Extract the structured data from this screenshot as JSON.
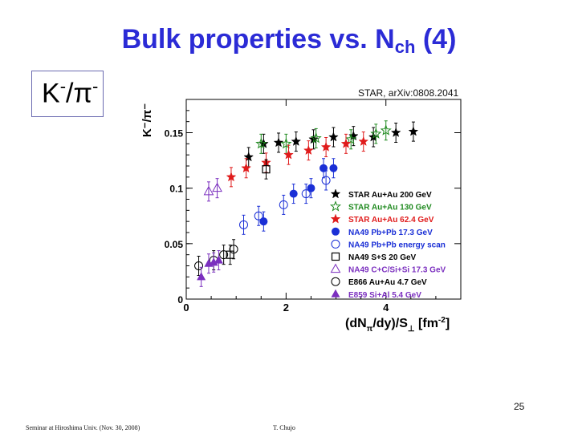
{
  "slide": {
    "title_main": "Bulk properties vs. N",
    "title_sub": "ch",
    "title_suffix": " (4)",
    "ratio_label_k": "K",
    "ratio_label_sup1": "-",
    "ratio_label_slash": "/",
    "ratio_label_pi": "π",
    "ratio_label_sup2": "-",
    "reference": "STAR, arXiv:0808.2041",
    "page_number": "25",
    "footer_left": "Seminar at Hiroshima Univ. (Nov. 30, 2008)",
    "footer_right": "T. Chujo"
  },
  "chart_data": {
    "type": "scatter",
    "ylabel": "K⁻/π⁻",
    "xlabel": "(dN",
    "xlabel_sub": "π",
    "xlabel_mid": "/dy)/S",
    "xlabel_sub2": "⊥",
    "xlabel_unit": "[fm",
    "xlabel_unit_sup": "-2",
    "xlabel_unit_end": "]",
    "xlim": [
      0,
      5.5
    ],
    "ylim": [
      0,
      0.18
    ],
    "x_ticks": [
      0,
      2,
      4
    ],
    "x_tick_labels": [
      "0",
      "2",
      "4"
    ],
    "y_ticks": [
      0,
      0.05,
      0.1,
      0.15
    ],
    "y_tick_labels": [
      "0",
      "0.05",
      "0.1",
      "0.15"
    ],
    "grid": false,
    "legend_position": "bottom-right",
    "series": [
      {
        "name": "STAR Au+Au 200 GeV",
        "marker": "star-filled",
        "color": "#000000",
        "x": [
          1.25,
          1.55,
          1.85,
          2.2,
          2.55,
          2.95,
          3.35,
          3.75,
          4.2,
          4.55
        ],
        "y": [
          0.128,
          0.14,
          0.141,
          0.142,
          0.144,
          0.146,
          0.147,
          0.146,
          0.15,
          0.151
        ]
      },
      {
        "name": "STAR Au+Au 130 GeV",
        "marker": "star-open",
        "color": "#1f8a1f",
        "x": [
          1.5,
          2.0,
          2.6,
          3.3,
          3.8,
          4.0
        ],
        "y": [
          0.14,
          0.14,
          0.145,
          0.144,
          0.149,
          0.152
        ]
      },
      {
        "name": "STAR Au+Au 62.4 GeV",
        "marker": "star-filled",
        "color": "#e01b1b",
        "x": [
          0.9,
          1.2,
          1.6,
          2.05,
          2.45,
          2.8,
          3.2,
          3.55
        ],
        "y": [
          0.11,
          0.118,
          0.123,
          0.13,
          0.134,
          0.137,
          0.14,
          0.142
        ]
      },
      {
        "name": "NA49 Pb+Pb 17.3 GeV",
        "marker": "circle-filled",
        "color": "#1a2fd6",
        "x": [
          1.55,
          2.15,
          2.5,
          2.75,
          2.95
        ],
        "y": [
          0.07,
          0.095,
          0.1,
          0.118,
          0.118
        ]
      },
      {
        "name": "NA49 Pb+Pb energy scan",
        "marker": "circle-open",
        "color": "#1a2fd6",
        "x": [
          1.15,
          1.45,
          1.95,
          2.4,
          2.8
        ],
        "y": [
          0.067,
          0.075,
          0.085,
          0.095,
          0.107
        ]
      },
      {
        "name": "NA49 S+S 20 GeV",
        "marker": "square-open",
        "color": "#000000",
        "x": [
          1.6,
          0.88
        ],
        "y": [
          0.117,
          0.04
        ]
      },
      {
        "name": "NA49 C+C/Si+Si 17.3 GeV",
        "marker": "triangle-open",
        "color": "#7b2fbf",
        "x": [
          0.45,
          0.62
        ],
        "y": [
          0.097,
          0.1
        ]
      },
      {
        "name": "E866 Au+Au 4.7 GeV",
        "marker": "circle-open",
        "color": "#000000",
        "x": [
          0.25,
          0.55,
          0.75,
          0.95
        ],
        "y": [
          0.03,
          0.035,
          0.04,
          0.045
        ]
      },
      {
        "name": "E859 Si+Al 5.4 GeV",
        "marker": "triangle-filled",
        "color": "#7b2fbf",
        "x": [
          0.3,
          0.45,
          0.55,
          0.65
        ],
        "y": [
          0.02,
          0.032,
          0.033,
          0.035
        ]
      }
    ]
  }
}
